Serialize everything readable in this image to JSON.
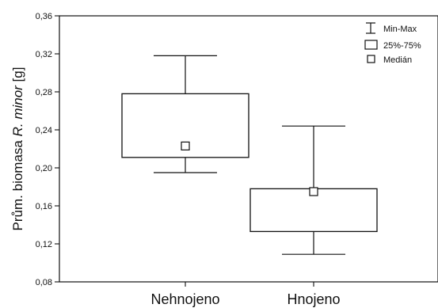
{
  "chart_data": {
    "type": "boxplot",
    "ylabel_prefix": "Prům. biomasa ",
    "ylabel_italic": "R. minor",
    "ylabel_suffix": " [g]",
    "ylim": [
      0.08,
      0.36
    ],
    "yticks": [
      "0,08",
      "0,12",
      "0,16",
      "0,20",
      "0,24",
      "0,28",
      "0,32",
      "0,36"
    ],
    "ytick_values": [
      0.08,
      0.12,
      0.16,
      0.2,
      0.24,
      0.28,
      0.32,
      0.36
    ],
    "categories": [
      "Nehnojeno",
      "Hnojeno"
    ],
    "series": [
      {
        "category": "Nehnojeno",
        "min": 0.195,
        "q1": 0.211,
        "median": 0.223,
        "q3": 0.278,
        "max": 0.318
      },
      {
        "category": "Hnojeno",
        "min": 0.109,
        "q1": 0.133,
        "median": 0.175,
        "q3": 0.178,
        "max": 0.244
      }
    ],
    "legend": [
      "Min-Max",
      "25%-75%",
      "Medián"
    ],
    "legend_position": "top-right",
    "grid": false
  }
}
